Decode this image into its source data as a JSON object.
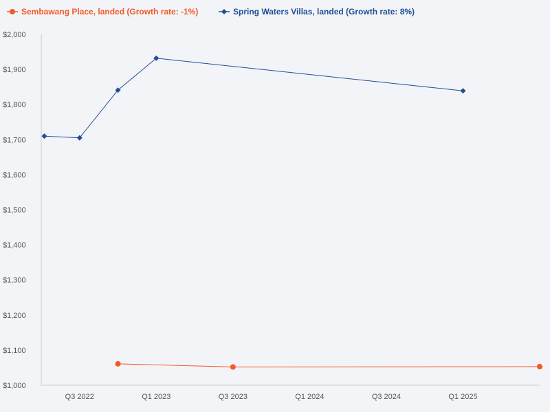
{
  "chart_data": {
    "type": "line",
    "title": "",
    "xlabel": "",
    "ylabel": "",
    "ylim": [
      1000,
      2000
    ],
    "y_ticks": [
      "$1,000",
      "$1,100",
      "$1,200",
      "$1,300",
      "$1,400",
      "$1,500",
      "$1,600",
      "$1,700",
      "$1,800",
      "$1,900",
      "$2,000"
    ],
    "y_tick_values": [
      1000,
      1100,
      1200,
      1300,
      1400,
      1500,
      1600,
      1700,
      1800,
      1900,
      2000
    ],
    "x_range": [
      2022.25,
      2025.5
    ],
    "x_ticks": [
      {
        "label": "Q3 2022",
        "value": 2022.5
      },
      {
        "label": "Q1 2023",
        "value": 2023.0
      },
      {
        "label": "Q3 2023",
        "value": 2023.5
      },
      {
        "label": "Q1 2024",
        "value": 2024.0
      },
      {
        "label": "Q3 2024",
        "value": 2024.5
      },
      {
        "label": "Q1 2025",
        "value": 2025.0
      }
    ],
    "legend_position": "top-left",
    "grid": false,
    "series": [
      {
        "name": "Sembawang Place, landed (Growth rate: -1%)",
        "color": "#f15a29",
        "marker": "circle",
        "points": [
          {
            "x": 2022.75,
            "y": 1061
          },
          {
            "x": 2023.5,
            "y": 1052
          },
          {
            "x": 2025.5,
            "y": 1053
          }
        ]
      },
      {
        "name": "Spring Waters Villas, landed (Growth rate: 8%)",
        "color": "#1f4e96",
        "marker": "diamond",
        "points": [
          {
            "x": 2022.27,
            "y": 1710
          },
          {
            "x": 2022.5,
            "y": 1705
          },
          {
            "x": 2022.75,
            "y": 1841
          },
          {
            "x": 2023.0,
            "y": 1932
          },
          {
            "x": 2025.0,
            "y": 1839
          }
        ]
      }
    ]
  }
}
